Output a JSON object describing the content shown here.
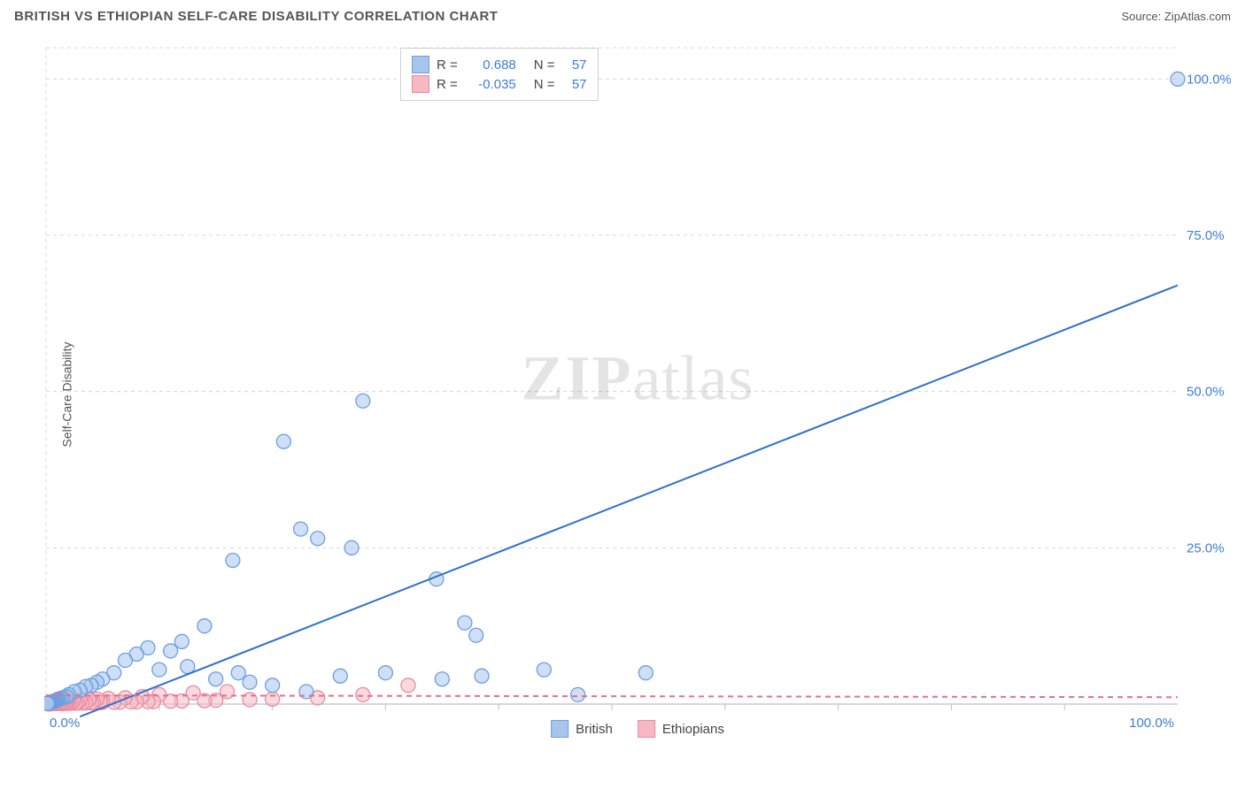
{
  "title": "BRITISH VS ETHIOPIAN SELF-CARE DISABILITY CORRELATION CHART",
  "source_label": "Source: ZipAtlas.com",
  "y_axis_label": "Self-Care Disability",
  "watermark_a": "ZIP",
  "watermark_b": "atlas",
  "chart": {
    "type": "scatter",
    "xlim": [
      0,
      100
    ],
    "ylim": [
      0,
      105
    ],
    "x_ticks": [
      0,
      100
    ],
    "x_tick_labels": [
      "0.0%",
      "100.0%"
    ],
    "y_ticks": [
      25,
      50,
      75,
      100
    ],
    "y_tick_labels": [
      "25.0%",
      "50.0%",
      "75.0%",
      "100.0%"
    ],
    "grid_color": "#d8d8d8",
    "tick_label_color": "#3b7dd8",
    "tick_fontsize": 15,
    "axis_line_color": "#bfbfbf",
    "background_color": "#ffffff",
    "minor_x_ticks": [
      10,
      20,
      30,
      40,
      50,
      60,
      70,
      80,
      90
    ],
    "series": [
      {
        "name": "British",
        "color_fill": "#a7c5ec",
        "color_stroke": "#6d9fe0",
        "fill_opacity": 0.55,
        "marker_radius": 8,
        "R": "0.688",
        "N": "57",
        "trend": {
          "x1": 3,
          "y1": -2,
          "x2": 100,
          "y2": 67,
          "color": "#2f6fd0",
          "width": 2
        },
        "points": [
          [
            100,
            100
          ],
          [
            34.5,
            20
          ],
          [
            28,
            48.5
          ],
          [
            21,
            42
          ],
          [
            22.5,
            28
          ],
          [
            24,
            26.5
          ],
          [
            27,
            25
          ],
          [
            16.5,
            23
          ],
          [
            37,
            13
          ],
          [
            38,
            11
          ],
          [
            44,
            5.5
          ],
          [
            47,
            1.5
          ],
          [
            53,
            5
          ],
          [
            38.5,
            4.5
          ],
          [
            35,
            4
          ],
          [
            30,
            5
          ],
          [
            26,
            4.5
          ],
          [
            23,
            2
          ],
          [
            20,
            3
          ],
          [
            17,
            5
          ],
          [
            14,
            12.5
          ],
          [
            12,
            10
          ],
          [
            11,
            8.5
          ],
          [
            9,
            9
          ],
          [
            8,
            8
          ],
          [
            7,
            7
          ],
          [
            6,
            5
          ],
          [
            5,
            4
          ],
          [
            4.5,
            3.5
          ],
          [
            4,
            3
          ],
          [
            3.5,
            2.8
          ],
          [
            3,
            2.2
          ],
          [
            2.5,
            2
          ],
          [
            2,
            1.5
          ],
          [
            1.8,
            1.2
          ],
          [
            1.5,
            1
          ],
          [
            1.3,
            0.9
          ],
          [
            1.1,
            0.8
          ],
          [
            1,
            0.7
          ],
          [
            0.9,
            0.6
          ],
          [
            0.8,
            0.5
          ],
          [
            0.7,
            0.45
          ],
          [
            0.6,
            0.4
          ],
          [
            0.5,
            0.35
          ],
          [
            0.4,
            0.3
          ],
          [
            0.35,
            0.28
          ],
          [
            0.3,
            0.25
          ],
          [
            0.25,
            0.22
          ],
          [
            0.2,
            0.2
          ],
          [
            0.18,
            0.18
          ],
          [
            0.15,
            0.15
          ],
          [
            0.12,
            0.12
          ],
          [
            0.1,
            0.1
          ],
          [
            10,
            5.5
          ],
          [
            12.5,
            6
          ],
          [
            15,
            4
          ],
          [
            18,
            3.5
          ]
        ]
      },
      {
        "name": "Ethiopians",
        "color_fill": "#f6b9c4",
        "color_stroke": "#e98ba0",
        "fill_opacity": 0.55,
        "marker_radius": 8,
        "R": "-0.035",
        "N": "57",
        "trend": {
          "x1": 0,
          "y1": 1.4,
          "x2": 100,
          "y2": 1.1,
          "color": "#e76f8e",
          "width": 2,
          "dash": "6,5"
        },
        "points": [
          [
            32,
            3
          ],
          [
            28,
            1.5
          ],
          [
            24,
            1
          ],
          [
            20,
            0.8
          ],
          [
            18,
            0.7
          ],
          [
            16,
            2
          ],
          [
            15,
            0.6
          ],
          [
            14,
            0.55
          ],
          [
            13,
            1.8
          ],
          [
            12,
            0.5
          ],
          [
            11,
            0.45
          ],
          [
            10,
            1.5
          ],
          [
            9.5,
            0.4
          ],
          [
            9,
            0.4
          ],
          [
            8.5,
            1.2
          ],
          [
            8,
            0.35
          ],
          [
            7.5,
            0.35
          ],
          [
            7,
            1
          ],
          [
            6.5,
            0.3
          ],
          [
            6,
            0.3
          ],
          [
            5.5,
            0.9
          ],
          [
            5,
            0.28
          ],
          [
            4.8,
            0.25
          ],
          [
            4.5,
            0.8
          ],
          [
            4.2,
            0.22
          ],
          [
            4,
            0.2
          ],
          [
            3.8,
            0.7
          ],
          [
            3.5,
            0.2
          ],
          [
            3.2,
            0.18
          ],
          [
            3,
            0.6
          ],
          [
            2.8,
            0.16
          ],
          [
            2.6,
            0.15
          ],
          [
            2.4,
            0.55
          ],
          [
            2.2,
            0.14
          ],
          [
            2,
            0.13
          ],
          [
            1.9,
            0.5
          ],
          [
            1.8,
            0.12
          ],
          [
            1.7,
            0.12
          ],
          [
            1.6,
            0.45
          ],
          [
            1.5,
            0.11
          ],
          [
            1.4,
            0.1
          ],
          [
            1.3,
            0.4
          ],
          [
            1.2,
            0.1
          ],
          [
            1.1,
            0.09
          ],
          [
            1,
            0.35
          ],
          [
            0.9,
            0.08
          ],
          [
            0.8,
            0.08
          ],
          [
            0.7,
            0.3
          ],
          [
            0.6,
            0.07
          ],
          [
            0.5,
            0.07
          ],
          [
            0.45,
            0.25
          ],
          [
            0.4,
            0.06
          ],
          [
            0.35,
            0.06
          ],
          [
            0.3,
            0.2
          ],
          [
            0.25,
            0.05
          ],
          [
            0.2,
            0.05
          ],
          [
            0.15,
            0.05
          ]
        ]
      }
    ]
  },
  "legend": {
    "items": [
      {
        "label": "British",
        "fill": "#a7c5ec",
        "stroke": "#6d9fe0"
      },
      {
        "label": "Ethiopians",
        "fill": "#f6b9c4",
        "stroke": "#e98ba0"
      }
    ]
  },
  "stats_box": {
    "rows": [
      {
        "fill": "#a7c5ec",
        "stroke": "#6d9fe0",
        "R": "0.688",
        "N": "57"
      },
      {
        "fill": "#f6b9c4",
        "stroke": "#e98ba0",
        "R": "-0.035",
        "N": "57"
      }
    ],
    "R_label": "R =",
    "N_label": "N ="
  }
}
